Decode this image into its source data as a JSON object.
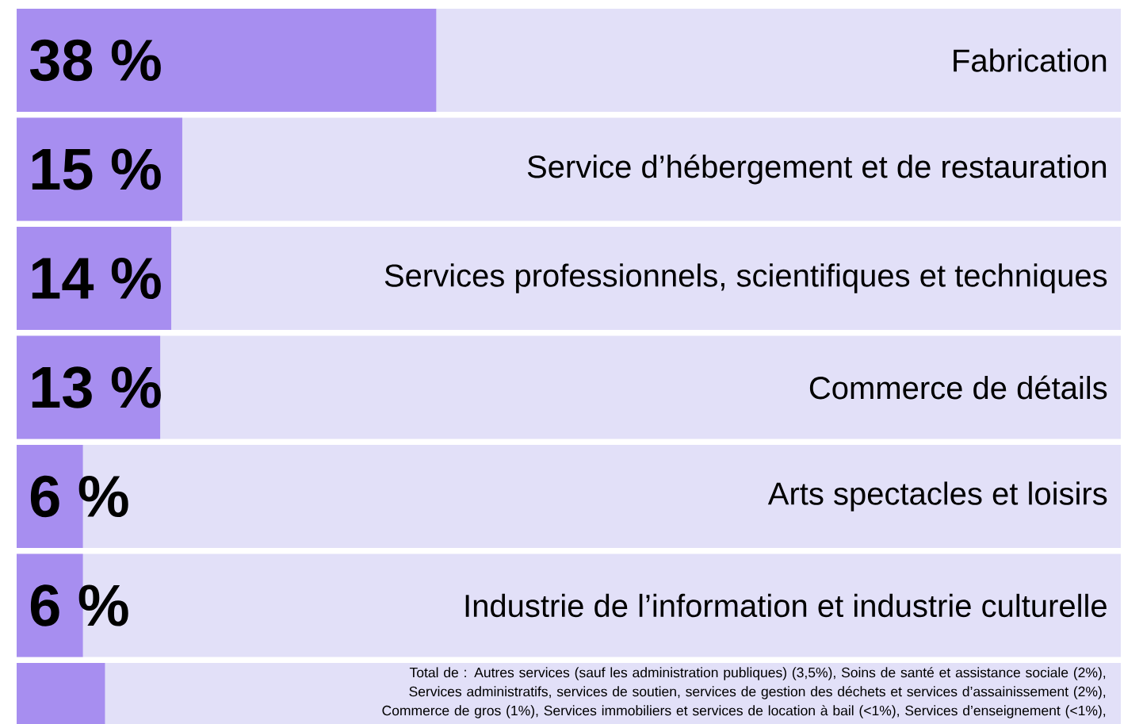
{
  "chart_data": {
    "type": "bar",
    "orientation": "horizontal",
    "categories": [
      "Fabrication",
      "Service d’hébergement et de restauration",
      "Services professionnels, scientifiques et techniques",
      "Commerce de détails",
      "Arts spectacles et loisirs",
      "Industrie de l’information et industrie culturelle",
      null
    ],
    "values": [
      38,
      15,
      14,
      13,
      6,
      6,
      8
    ],
    "value_labels": [
      "38 %",
      "15 %",
      "14 %",
      "13 %",
      "6 %",
      "6 %",
      null
    ],
    "color": "#a78ef0",
    "xlim": [
      0,
      100
    ],
    "annotations": [
      "Total de : Autres services (sauf les administration publiques) (3,5%), Soins de santé et assistance sociale (2%), Services administratifs, services de soutien, services de gestion des déchets et services d’assainissement (2%), Commerce de gros (1%),  Services immobiliers et services de location à bail (<1%), Services d’enseignement (<1%),"
    ]
  }
}
